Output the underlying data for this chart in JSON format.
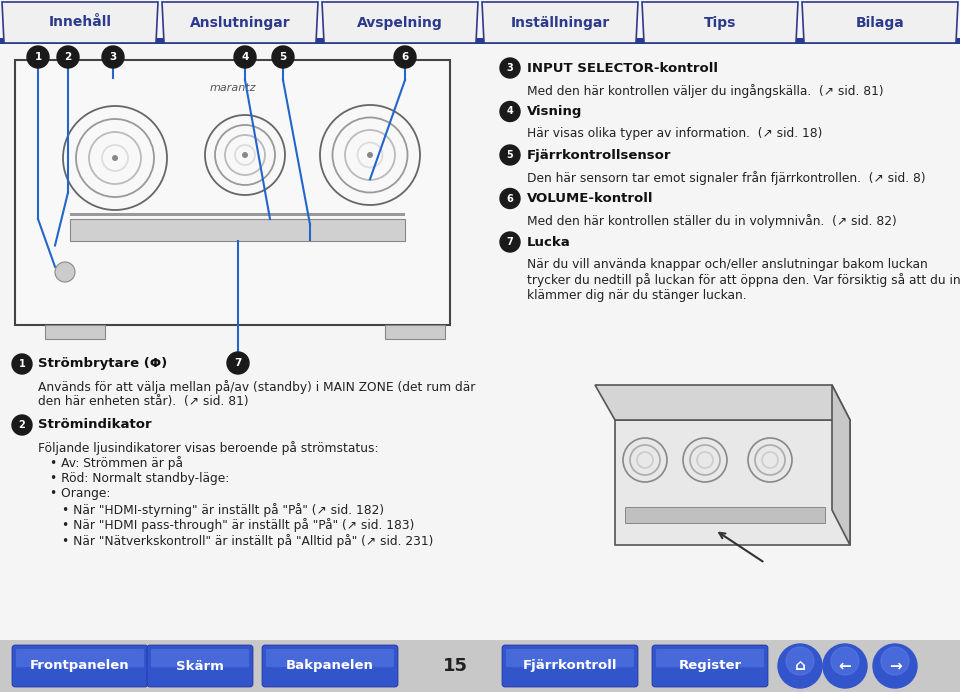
{
  "bg_color": "#f5f5f5",
  "top_nav": {
    "line_color": "#2b3a8c",
    "tab_fill": "#f0f0f0",
    "tabs": [
      "Innehåll",
      "Anslutningar",
      "Avspelning",
      "Inställningar",
      "Tips",
      "Bilaga"
    ],
    "text_color": "#2b3a8c"
  },
  "bottom_nav": {
    "buttons_left": [
      "Frontpanelen",
      "Skärm",
      "Bakpanelen"
    ],
    "buttons_right": [
      "Fjärrkontroll",
      "Register"
    ],
    "page_num": "15",
    "btn_color": "#3355cc",
    "text_color": "#ffffff",
    "bg_color": "#c8c8c8"
  },
  "device_color": "#e0e0e0",
  "device_border": "#444444",
  "knob_colors": [
    "#888888",
    "#aaaaaa",
    "#cccccc"
  ],
  "line_color": "#2266cc",
  "bullet_bg": "#1a1a1a",
  "bullet_text": "#ffffff",
  "text_dark": "#111111",
  "text_body": "#222222",
  "ref_color": "#555555",
  "left_sections": [
    {
      "bullet": "1",
      "title": "Strömbrytare (Φ)",
      "lines": [
        {
          "indent": 0,
          "text": "Används för att välja mellan på/av (standby) i MAIN ZONE (det rum där"
        },
        {
          "indent": 0,
          "text": "den här enheten står).  (↗ sid. 81)"
        }
      ]
    },
    {
      "bullet": "2",
      "title": "Strömindikator",
      "lines": [
        {
          "indent": 0,
          "text": "Följande ljusindikatorer visas beroende på strömstatus:"
        },
        {
          "indent": 1,
          "text": "• Av: Strömmen är på"
        },
        {
          "indent": 1,
          "text": "• Röd: Normalt standby-läge:"
        },
        {
          "indent": 1,
          "text": "• Orange:"
        },
        {
          "indent": 2,
          "text": "• När \"HDMI-styrning\" är inställt på \"På\" (↗ sid. 182)"
        },
        {
          "indent": 2,
          "text": "• När \"HDMI pass-through\" är inställt på \"På\" (↗ sid. 183)"
        },
        {
          "indent": 2,
          "text": "• När \"Nätverkskontroll\" är inställt på \"Alltid på\" (↗ sid. 231)"
        }
      ]
    }
  ],
  "right_sections": [
    {
      "bullet": "3",
      "title": "INPUT SELECTOR-kontroll",
      "lines": [
        {
          "indent": 0,
          "text": "Med den här kontrollen väljer du ingångskälla.  (↗ sid. 81)"
        }
      ]
    },
    {
      "bullet": "4",
      "title": "Visning",
      "lines": [
        {
          "indent": 0,
          "text": "Här visas olika typer av information.  (↗ sid. 18)"
        }
      ]
    },
    {
      "bullet": "5",
      "title": "Fjärrkontrollsensor",
      "lines": [
        {
          "indent": 0,
          "text": "Den här sensorn tar emot signaler från fjärrkontrollen.  (↗ sid. 8)"
        }
      ]
    },
    {
      "bullet": "6",
      "title": "VOLUME-kontroll",
      "lines": [
        {
          "indent": 0,
          "text": "Med den här kontrollen ställer du in volymnivån.  (↗ sid. 82)"
        }
      ]
    },
    {
      "bullet": "7",
      "title": "Lucka",
      "lines": [
        {
          "indent": 0,
          "text": "När du vill använda knappar och/eller anslutningar bakom luckan"
        },
        {
          "indent": 0,
          "text": "trycker du nedtill på luckan för att öppna den. Var försiktig så att du inte"
        },
        {
          "indent": 0,
          "text": "klämmer dig när du stänger luckan."
        }
      ]
    }
  ]
}
